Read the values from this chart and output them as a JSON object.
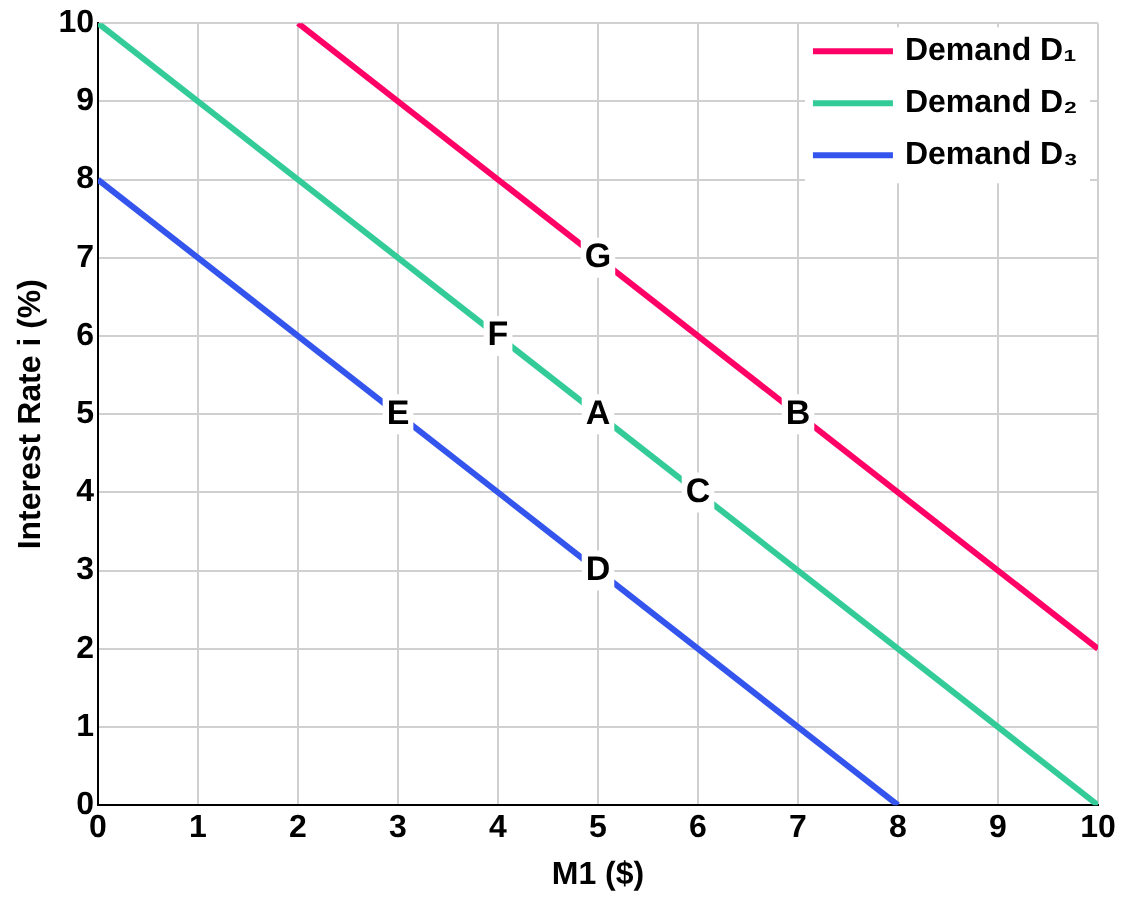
{
  "chart_data": {
    "type": "line",
    "xlabel": "M1 ($)",
    "ylabel": "Interest Rate i (%)",
    "xlim": [
      0,
      10
    ],
    "ylim": [
      0,
      10
    ],
    "xticks": [
      0,
      1,
      2,
      3,
      4,
      5,
      6,
      7,
      8,
      9,
      10
    ],
    "yticks": [
      0,
      1,
      2,
      3,
      4,
      5,
      6,
      7,
      8,
      9,
      10
    ],
    "grid": true,
    "legend": "top right",
    "marker": "none",
    "line_style": "solid",
    "series": [
      {
        "name": "Demand D₁",
        "color": "#ff0066",
        "x": [
          2,
          10
        ],
        "values": [
          10,
          2
        ]
      },
      {
        "name": "Demand D₂",
        "color": "#33cc99",
        "x": [
          0,
          10
        ],
        "values": [
          10,
          0
        ]
      },
      {
        "name": "Demand D₃",
        "color": "#3355ee",
        "x": [
          0,
          8
        ],
        "values": [
          8,
          0
        ]
      }
    ],
    "annotations": [
      {
        "text": "G",
        "x": 5,
        "y": 7
      },
      {
        "text": "F",
        "x": 4,
        "y": 6
      },
      {
        "text": "E",
        "x": 3,
        "y": 5
      },
      {
        "text": "A",
        "x": 5,
        "y": 5
      },
      {
        "text": "B",
        "x": 7,
        "y": 5
      },
      {
        "text": "C",
        "x": 6,
        "y": 4
      },
      {
        "text": "D",
        "x": 5,
        "y": 3
      }
    ]
  }
}
